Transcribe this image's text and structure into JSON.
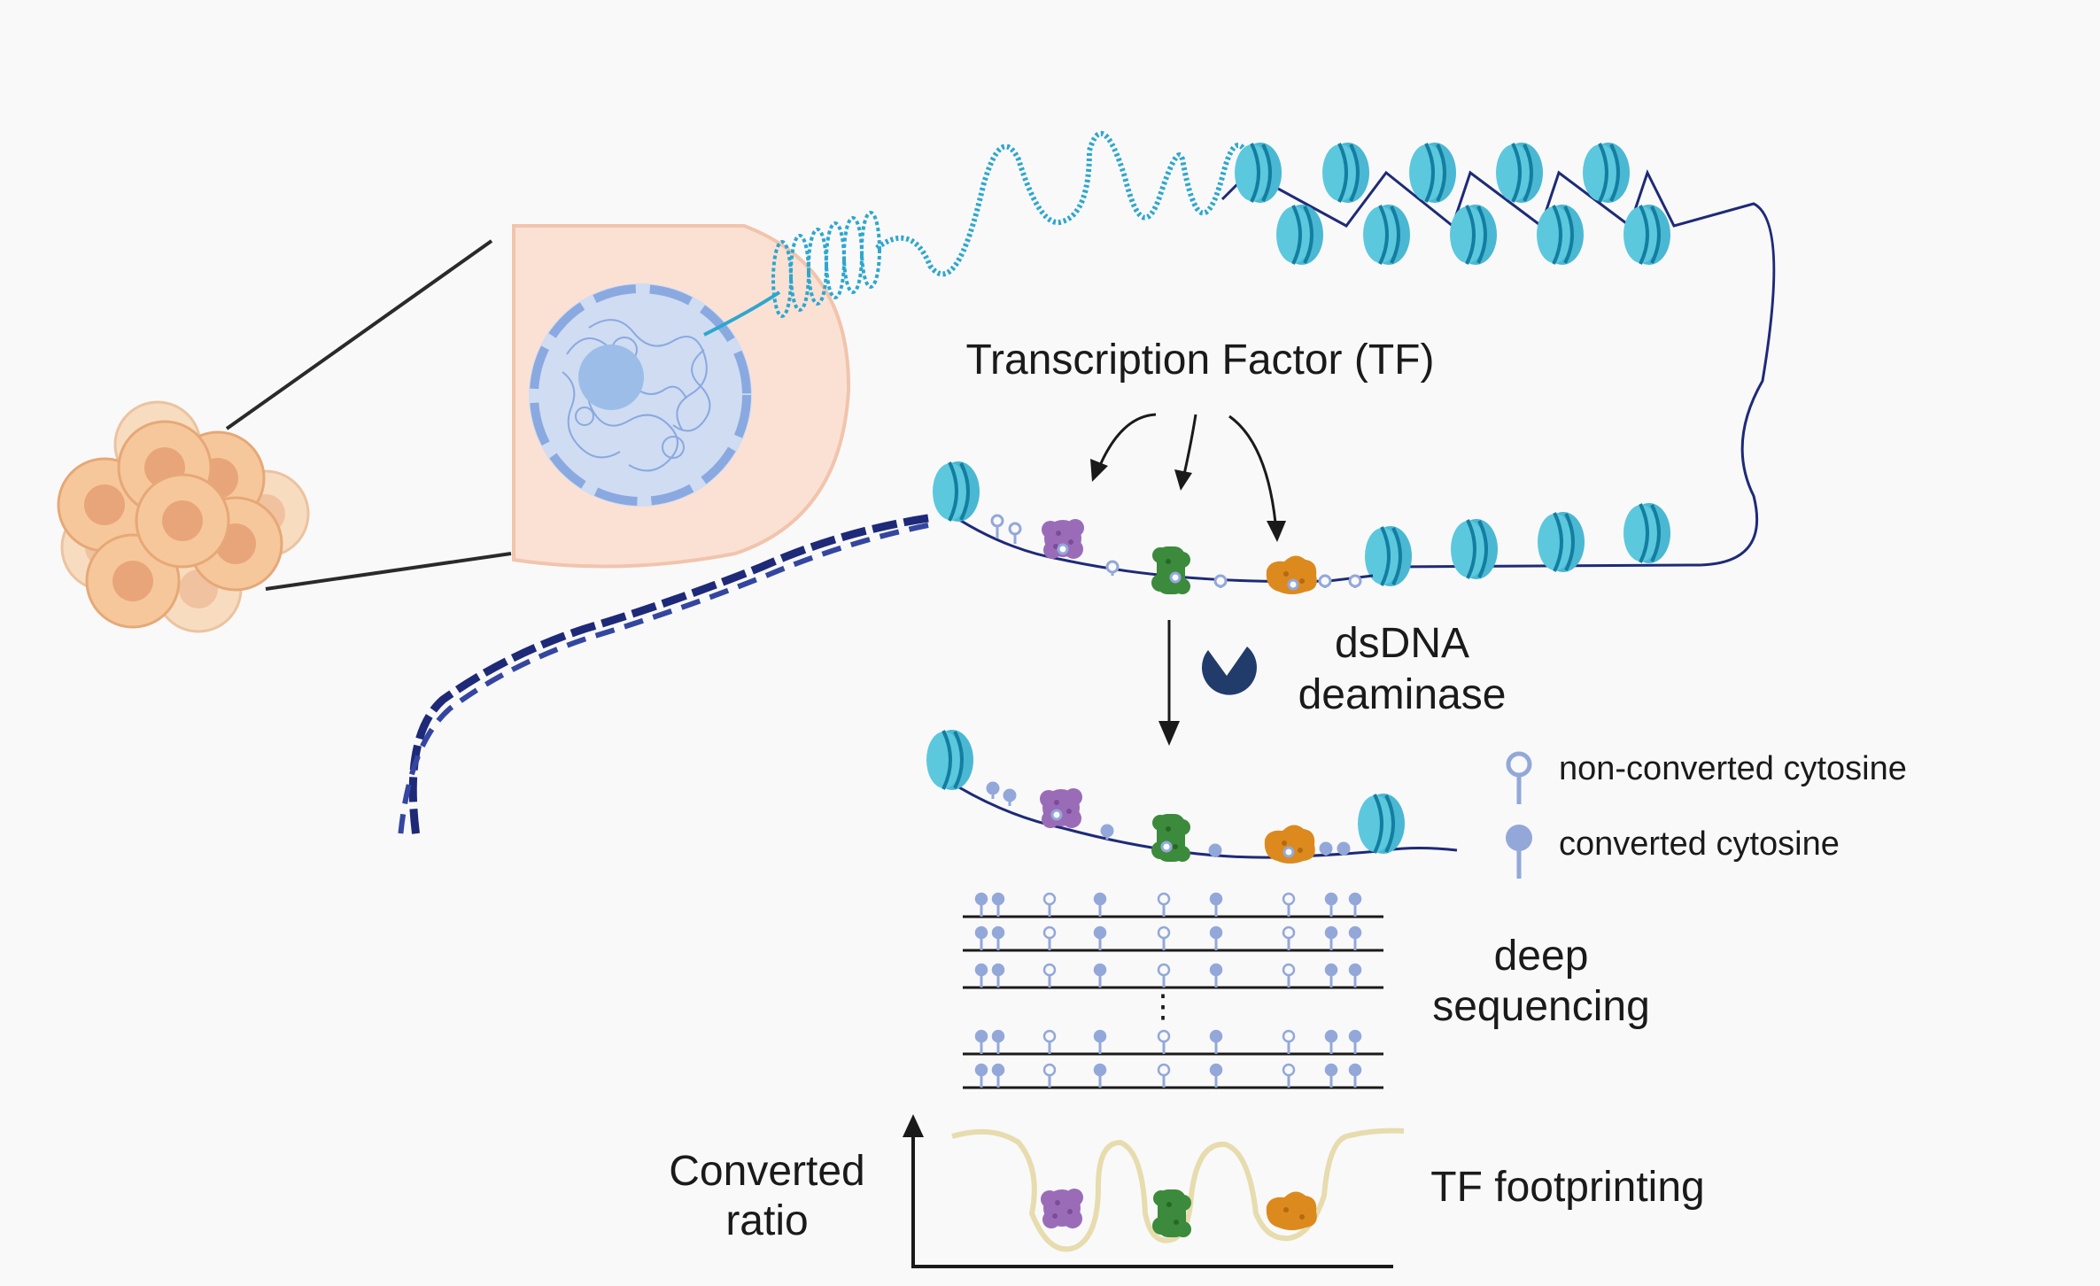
{
  "labels": {
    "tf": "Transcription Factor (TF)",
    "enzyme_line1": "dsDNA",
    "enzyme_line2": "deaminase",
    "deep_line1": "deep",
    "deep_line2": "sequencing",
    "ratio_line1": "Converted",
    "ratio_line2": "ratio",
    "footprint": "TF footprinting",
    "vdots": "⋮"
  },
  "legend": [
    {
      "label": "non-converted cytosine",
      "icon": "open-lollipop-icon"
    },
    {
      "label": "converted cytosine",
      "icon": "filled-lollipop-icon"
    }
  ],
  "colors": {
    "background": "#f9f9f9",
    "nucleosome": "#4ab8d2",
    "nucleosome_dark": "#137ea0",
    "dna_dark": "#1e2a78",
    "dna_light": "#2da7cf",
    "cytosine": "#93a8d9",
    "tf_purple": "#9a6cb8",
    "tf_green": "#3c8a3c",
    "tf_orange": "#dc8a1e",
    "cell": "#f6c79a",
    "cell_nucleus": "#e9a57a",
    "nucleus_blue": "#a9c6ee",
    "deaminase": "#213c6a",
    "footprint_curve": "#e7dcae"
  },
  "reads": {
    "count": 5,
    "pattern": [
      "filled",
      "filled",
      "open",
      "filled",
      "open",
      "filled",
      "open",
      "filled",
      "filled"
    ]
  }
}
